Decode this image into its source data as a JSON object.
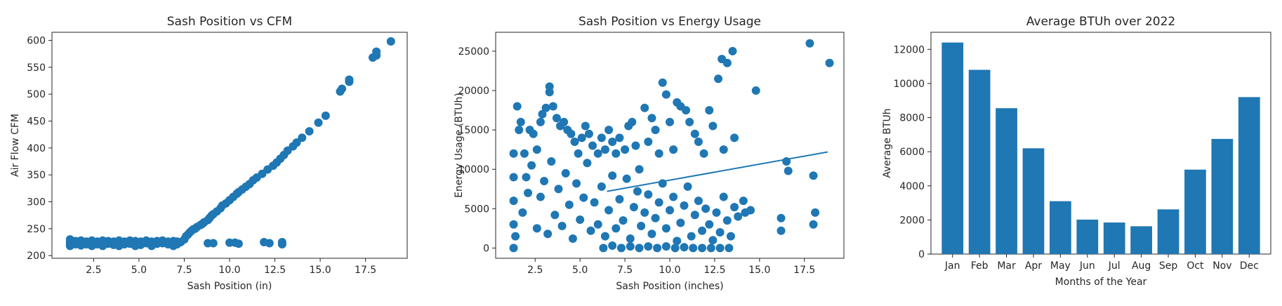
{
  "chart_data": [
    {
      "type": "scatter",
      "title": "Sash Position vs CFM",
      "xlabel": "Sash Position (in)",
      "ylabel": "Air Flow CFM",
      "xlim": [
        0.2,
        19.8
      ],
      "ylim": [
        195,
        615
      ],
      "xticks": [
        2.5,
        5.0,
        7.5,
        10.0,
        12.5,
        15.0,
        17.5
      ],
      "xticklabels": [
        "2.5",
        "5.0",
        "7.5",
        "10.0",
        "12.5",
        "15.0",
        "17.5"
      ],
      "yticks": [
        200,
        250,
        300,
        350,
        400,
        450,
        500,
        550,
        600
      ],
      "yticklabels": [
        "200",
        "250",
        "300",
        "350",
        "400",
        "450",
        "500",
        "550",
        "600"
      ],
      "color": "#1f77b4",
      "points": [
        [
          1.2,
          230
        ],
        [
          1.2,
          226
        ],
        [
          1.2,
          222
        ],
        [
          1.2,
          218
        ],
        [
          1.5,
          227
        ],
        [
          1.5,
          221
        ],
        [
          1.8,
          228
        ],
        [
          1.8,
          224
        ],
        [
          1.8,
          219
        ],
        [
          2.1,
          226
        ],
        [
          2.1,
          221
        ],
        [
          2.4,
          228
        ],
        [
          2.4,
          223
        ],
        [
          2.4,
          218
        ],
        [
          2.7,
          226
        ],
        [
          2.7,
          221
        ],
        [
          3.0,
          228
        ],
        [
          3.0,
          222
        ],
        [
          3.0,
          218
        ],
        [
          3.3,
          227
        ],
        [
          3.3,
          222
        ],
        [
          3.6,
          226
        ],
        [
          3.6,
          220
        ],
        [
          3.9,
          228
        ],
        [
          3.9,
          223
        ],
        [
          3.9,
          218
        ],
        [
          4.2,
          226
        ],
        [
          4.2,
          221
        ],
        [
          4.5,
          228
        ],
        [
          4.5,
          222
        ],
        [
          4.8,
          227
        ],
        [
          4.8,
          222
        ],
        [
          4.8,
          218
        ],
        [
          5.1,
          226
        ],
        [
          5.1,
          220
        ],
        [
          5.4,
          228
        ],
        [
          5.4,
          223
        ],
        [
          5.7,
          226
        ],
        [
          5.7,
          221
        ],
        [
          5.7,
          218
        ],
        [
          6.0,
          227
        ],
        [
          6.0,
          222
        ],
        [
          6.3,
          228
        ],
        [
          6.3,
          223
        ],
        [
          6.6,
          226
        ],
        [
          6.6,
          221
        ],
        [
          6.9,
          227
        ],
        [
          6.9,
          222
        ],
        [
          6.9,
          218
        ],
        [
          7.1,
          226
        ],
        [
          7.1,
          221
        ],
        [
          7.3,
          225
        ],
        [
          7.5,
          230
        ],
        [
          7.6,
          236
        ],
        [
          7.7,
          239
        ],
        [
          7.8,
          243
        ],
        [
          7.9,
          246
        ],
        [
          8.0,
          249
        ],
        [
          8.1,
          250
        ],
        [
          8.2,
          253
        ],
        [
          8.4,
          257
        ],
        [
          8.5,
          259
        ],
        [
          8.6,
          262
        ],
        [
          8.8,
          266
        ],
        [
          8.9,
          270
        ],
        [
          9.0,
          274
        ],
        [
          9.1,
          277
        ],
        [
          9.3,
          282
        ],
        [
          9.5,
          288
        ],
        [
          9.6,
          293
        ],
        [
          9.8,
          297
        ],
        [
          10.0,
          303
        ],
        [
          10.2,
          309
        ],
        [
          10.4,
          315
        ],
        [
          10.5,
          318
        ],
        [
          10.7,
          323
        ],
        [
          10.9,
          328
        ],
        [
          11.1,
          333
        ],
        [
          11.3,
          340
        ],
        [
          11.5,
          345
        ],
        [
          11.8,
          352
        ],
        [
          12.1,
          360
        ],
        [
          12.4,
          367
        ],
        [
          12.6,
          373
        ],
        [
          12.8,
          380
        ],
        [
          13.0,
          387
        ],
        [
          13.2,
          395
        ],
        [
          13.5,
          403
        ],
        [
          13.7,
          410
        ],
        [
          14.0,
          419
        ],
        [
          14.4,
          431
        ],
        [
          14.9,
          447
        ],
        [
          15.3,
          460
        ],
        [
          16.1,
          505
        ],
        [
          16.2,
          510
        ],
        [
          16.6,
          523
        ],
        [
          16.6,
          527
        ],
        [
          17.9,
          568
        ],
        [
          18.1,
          572
        ],
        [
          18.1,
          579
        ],
        [
          18.9,
          598
        ],
        [
          8.8,
          223
        ],
        [
          9.1,
          223
        ],
        [
          10.0,
          224
        ],
        [
          10.3,
          224
        ],
        [
          10.5,
          222
        ],
        [
          11.9,
          225
        ],
        [
          12.2,
          223
        ],
        [
          12.9,
          225
        ],
        [
          12.9,
          221
        ]
      ]
    },
    {
      "type": "scatter",
      "title": "Sash Position vs Energy Usage",
      "xlabel": "Sash Position (inches)",
      "ylabel": "Energy Usage (BTUh)",
      "xlim": [
        0.3,
        19.7
      ],
      "ylim": [
        -1300,
        27400
      ],
      "xticks": [
        2.5,
        5.0,
        7.5,
        10.0,
        12.5,
        15.0,
        17.5
      ],
      "xticklabels": [
        "2.5",
        "5.0",
        "7.5",
        "10.0",
        "12.5",
        "15.0",
        "17.5"
      ],
      "yticks": [
        0,
        5000,
        10000,
        15000,
        20000,
        25000
      ],
      "yticklabels": [
        "0",
        "5000",
        "10000",
        "15000",
        "20000",
        "25000"
      ],
      "color": "#1f77b4",
      "trendline": [
        [
          6.5,
          7200
        ],
        [
          18.8,
          12200
        ]
      ],
      "points": [
        [
          1.3,
          0
        ],
        [
          1.3,
          3000
        ],
        [
          1.3,
          6000
        ],
        [
          1.3,
          9000
        ],
        [
          1.3,
          12000
        ],
        [
          1.5,
          18000
        ],
        [
          1.6,
          15000
        ],
        [
          1.7,
          16000
        ],
        [
          1.9,
          12000
        ],
        [
          2.0,
          9000
        ],
        [
          2.2,
          15000
        ],
        [
          2.4,
          14500
        ],
        [
          2.6,
          12500
        ],
        [
          2.8,
          16000
        ],
        [
          2.9,
          17000
        ],
        [
          3.1,
          17800
        ],
        [
          3.3,
          19800
        ],
        [
          3.3,
          20500
        ],
        [
          3.5,
          18000
        ],
        [
          3.7,
          16500
        ],
        [
          3.9,
          15500
        ],
        [
          4.1,
          16000
        ],
        [
          4.3,
          15000
        ],
        [
          4.5,
          14500
        ],
        [
          4.7,
          13500
        ],
        [
          4.9,
          12000
        ],
        [
          5.1,
          14000
        ],
        [
          5.3,
          15500
        ],
        [
          5.5,
          14500
        ],
        [
          5.7,
          13000
        ],
        [
          6.0,
          12000
        ],
        [
          6.2,
          14000
        ],
        [
          6.4,
          12500
        ],
        [
          6.6,
          15000
        ],
        [
          6.8,
          13500
        ],
        [
          7.0,
          12000
        ],
        [
          7.2,
          14000
        ],
        [
          7.5,
          12500
        ],
        [
          7.7,
          15500
        ],
        [
          7.9,
          16000
        ],
        [
          8.1,
          13000
        ],
        [
          8.3,
          10000
        ],
        [
          8.6,
          17800
        ],
        [
          8.8,
          13500
        ],
        [
          9.0,
          16500
        ],
        [
          9.2,
          15000
        ],
        [
          9.4,
          12000
        ],
        [
          9.6,
          21000
        ],
        [
          9.8,
          19500
        ],
        [
          10.0,
          16000
        ],
        [
          10.2,
          12500
        ],
        [
          10.4,
          18500
        ],
        [
          10.6,
          18000
        ],
        [
          10.9,
          17500
        ],
        [
          11.1,
          16000
        ],
        [
          11.4,
          14500
        ],
        [
          11.6,
          13500
        ],
        [
          11.9,
          12000
        ],
        [
          12.2,
          17500
        ],
        [
          12.4,
          15500
        ],
        [
          12.7,
          21500
        ],
        [
          12.9,
          24000
        ],
        [
          13.0,
          12500
        ],
        [
          13.2,
          23500
        ],
        [
          13.5,
          25000
        ],
        [
          13.6,
          14000
        ],
        [
          14.1,
          6000
        ],
        [
          14.8,
          20000
        ],
        [
          16.2,
          3800
        ],
        [
          16.5,
          11000
        ],
        [
          16.6,
          9800
        ],
        [
          17.8,
          26000
        ],
        [
          18.0,
          9200
        ],
        [
          18.1,
          4500
        ],
        [
          18.0,
          3000
        ],
        [
          18.9,
          23500
        ],
        [
          1.4,
          1500
        ],
        [
          1.8,
          4500
        ],
        [
          2.1,
          7000
        ],
        [
          2.3,
          10500
        ],
        [
          2.6,
          2500
        ],
        [
          2.8,
          6500
        ],
        [
          3.0,
          8500
        ],
        [
          3.2,
          1800
        ],
        [
          3.4,
          11000
        ],
        [
          3.6,
          4200
        ],
        [
          3.8,
          7500
        ],
        [
          4.0,
          2800
        ],
        [
          4.2,
          9500
        ],
        [
          4.4,
          5500
        ],
        [
          4.6,
          1200
        ],
        [
          4.8,
          8200
        ],
        [
          5.0,
          3600
        ],
        [
          5.2,
          6400
        ],
        [
          5.4,
          10800
        ],
        [
          5.6,
          2200
        ],
        [
          5.8,
          5800
        ],
        [
          6.0,
          3000
        ],
        [
          6.2,
          7800
        ],
        [
          6.4,
          1500
        ],
        [
          6.6,
          4800
        ],
        [
          6.8,
          9200
        ],
        [
          7.0,
          2500
        ],
        [
          7.2,
          6200
        ],
        [
          7.4,
          3500
        ],
        [
          7.6,
          8800
        ],
        [
          7.8,
          1200
        ],
        [
          8.0,
          5200
        ],
        [
          8.2,
          7200
        ],
        [
          8.4,
          2800
        ],
        [
          8.6,
          4500
        ],
        [
          8.8,
          6800
        ],
        [
          9.0,
          1800
        ],
        [
          9.2,
          3800
        ],
        [
          9.4,
          5800
        ],
        [
          9.6,
          8200
        ],
        [
          9.8,
          2500
        ],
        [
          10.0,
          4800
        ],
        [
          10.2,
          6500
        ],
        [
          10.4,
          900
        ],
        [
          10.6,
          3200
        ],
        [
          10.8,
          5400
        ],
        [
          11.0,
          7800
        ],
        [
          11.2,
          1500
        ],
        [
          11.4,
          4200
        ],
        [
          11.6,
          6000
        ],
        [
          11.8,
          2200
        ],
        [
          12.0,
          5000
        ],
        [
          12.2,
          3000
        ],
        [
          12.4,
          1000
        ],
        [
          12.6,
          4500
        ],
        [
          12.8,
          2000
        ],
        [
          13.0,
          6500
        ],
        [
          13.2,
          3500
        ],
        [
          13.4,
          1500
        ],
        [
          13.6,
          5200
        ],
        [
          13.8,
          4000
        ],
        [
          14.2,
          4500
        ],
        [
          14.5,
          4800
        ],
        [
          16.2,
          2200
        ],
        [
          6.3,
          0
        ],
        [
          6.8,
          300
        ],
        [
          7.3,
          0
        ],
        [
          7.8,
          200
        ],
        [
          8.3,
          0
        ],
        [
          8.8,
          200
        ],
        [
          9.3,
          0
        ],
        [
          9.8,
          200
        ],
        [
          10.3,
          0
        ],
        [
          10.8,
          100
        ],
        [
          11.3,
          0
        ],
        [
          11.8,
          0
        ],
        [
          12.3,
          0
        ],
        [
          12.8,
          0
        ],
        [
          13.3,
          0
        ]
      ]
    },
    {
      "type": "bar",
      "title": "Average BTUh over 2022",
      "xlabel": "Months of the Year",
      "ylabel": "Average BTUh",
      "categories": [
        "Jan",
        "Feb",
        "Mar",
        "Apr",
        "May",
        "Jun",
        "Jul",
        "Aug",
        "Sep",
        "Oct",
        "Nov",
        "Dec"
      ],
      "values": [
        12400,
        10800,
        8550,
        6200,
        3100,
        2020,
        1850,
        1630,
        2620,
        4950,
        6750,
        9200
      ],
      "ylim": [
        0,
        13000
      ],
      "yticks": [
        0,
        2000,
        4000,
        6000,
        8000,
        10000,
        12000
      ],
      "yticklabels": [
        "0",
        "2000",
        "4000",
        "6000",
        "8000",
        "10000",
        "12000"
      ],
      "color": "#1f77b4"
    }
  ]
}
